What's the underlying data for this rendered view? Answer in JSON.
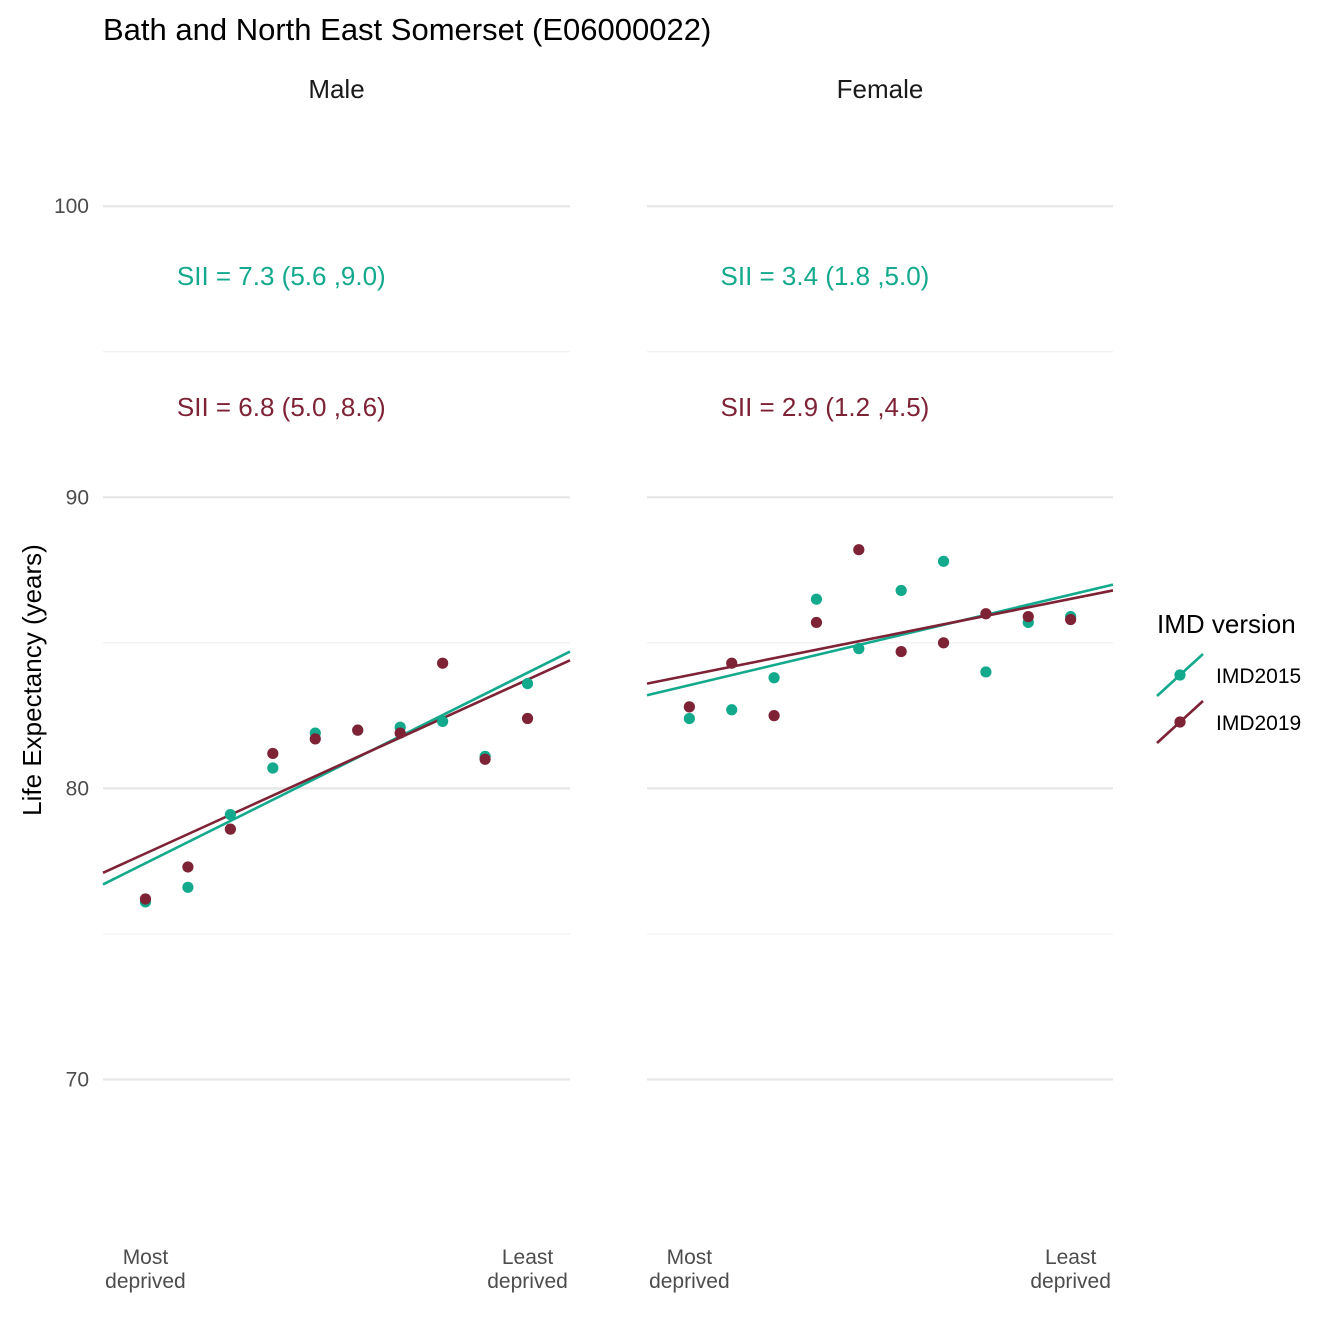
{
  "chart_data": {
    "type": "scatter",
    "title": "Bath and North East Somerset (E06000022)",
    "ylabel": "Life Expectancy (years)",
    "ylim": [
      65,
      102
    ],
    "yticks": [
      70,
      80,
      90,
      100
    ],
    "x_tick_labels": [
      "Most\ndeprived",
      "Least\ndeprived"
    ],
    "legend": {
      "title": "IMD version",
      "position": "right",
      "entries": [
        {
          "name": "IMD2015",
          "color": "#12A98D"
        },
        {
          "name": "IMD2019",
          "color": "#7E2236"
        }
      ]
    },
    "panels": [
      {
        "label": "Male",
        "annotations": [
          {
            "text": "SII = 7.3 (5.6 ,9.0)",
            "series": "IMD2015",
            "y": 97.6
          },
          {
            "text": "SII = 6.8 (5.0 ,8.6)",
            "series": "IMD2019",
            "y": 93.1
          }
        ],
        "series": [
          {
            "name": "IMD2015",
            "x": [
              1,
              2,
              3,
              4,
              5,
              6,
              7,
              8,
              9,
              10
            ],
            "y": [
              76.1,
              76.6,
              79.1,
              80.7,
              81.9,
              82.0,
              82.1,
              82.3,
              81.1,
              83.6
            ],
            "fit": [
              76.7,
              84.7
            ]
          },
          {
            "name": "IMD2019",
            "x": [
              1,
              2,
              3,
              4,
              5,
              6,
              7,
              8,
              9,
              10
            ],
            "y": [
              76.2,
              77.3,
              78.6,
              81.2,
              81.7,
              82.0,
              81.9,
              84.3,
              81.0,
              82.4
            ],
            "fit": [
              77.1,
              84.4
            ]
          }
        ]
      },
      {
        "label": "Female",
        "annotations": [
          {
            "text": "SII = 3.4 (1.8 ,5.0)",
            "series": "IMD2015",
            "y": 97.6
          },
          {
            "text": "SII = 2.9 (1.2 ,4.5)",
            "series": "IMD2019",
            "y": 93.1
          }
        ],
        "series": [
          {
            "name": "IMD2015",
            "x": [
              1,
              2,
              3,
              4,
              5,
              6,
              7,
              8,
              9,
              10
            ],
            "y": [
              82.4,
              82.7,
              83.8,
              86.5,
              84.8,
              86.8,
              87.8,
              84.0,
              85.7,
              85.9
            ],
            "fit": [
              83.2,
              87.0
            ]
          },
          {
            "name": "IMD2019",
            "x": [
              1,
              2,
              3,
              4,
              5,
              6,
              7,
              8,
              9,
              10
            ],
            "y": [
              82.8,
              84.3,
              82.5,
              85.7,
              88.2,
              84.7,
              85.0,
              86.0,
              85.9,
              85.8
            ],
            "fit": [
              83.6,
              86.8
            ]
          }
        ]
      }
    ]
  }
}
